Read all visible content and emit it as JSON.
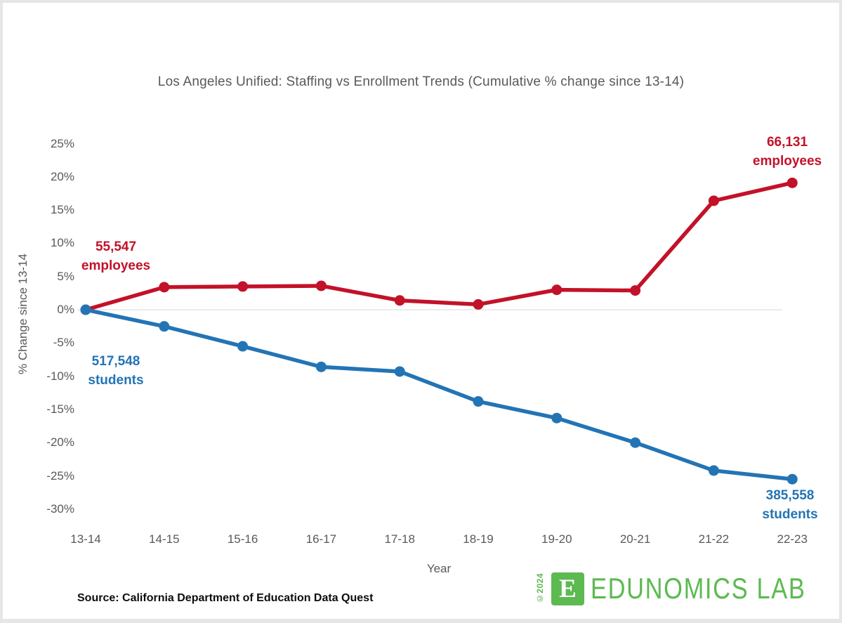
{
  "page": {
    "title": "Los Angeles Unified: Staffing vs Enrollment Trends (Cumulative % change since 13-14)",
    "source_note": "Source: California Department of Education Data Quest"
  },
  "axes": {
    "y_title": "% Change since 13-14",
    "x_title": "Year"
  },
  "annotations": {
    "employees_start": {
      "value": "55,547",
      "label": "employees"
    },
    "students_start": {
      "value": "517,548",
      "label": "students"
    },
    "employees_end": {
      "value": "66,131",
      "label": "employees"
    },
    "students_end": {
      "value": "385,558",
      "label": "students"
    }
  },
  "logo": {
    "copyright": "©2024",
    "monogram": "E",
    "name": "EDUNOMICS LAB",
    "color": "#5cba50"
  },
  "colors": {
    "employees_line": "#c21229",
    "students_line": "#2374b5",
    "axis_text": "#595959",
    "zero_gridline": "#ececec"
  },
  "chart_data": {
    "type": "line",
    "title": "Los Angeles Unified: Staffing vs Enrollment Trends (Cumulative % change since 13-14)",
    "xlabel": "Year",
    "ylabel": "% Change since 13-14",
    "categories": [
      "13-14",
      "14-15",
      "15-16",
      "16-17",
      "17-18",
      "18-19",
      "19-20",
      "20-21",
      "21-22",
      "22-23"
    ],
    "series": [
      {
        "name": "employees",
        "color": "#c21229",
        "values": [
          0,
          3.4,
          3.5,
          3.6,
          1.4,
          0.8,
          3.0,
          2.9,
          16.4,
          19.1
        ]
      },
      {
        "name": "students",
        "color": "#2374b5",
        "values": [
          0,
          -2.5,
          -5.5,
          -8.6,
          -9.3,
          -13.8,
          -16.3,
          -20.0,
          -24.2,
          -25.5
        ]
      }
    ],
    "ylim": [
      -30,
      25
    ],
    "y_ticks": [
      {
        "label": "25%",
        "value": 25
      },
      {
        "label": "20%",
        "value": 20
      },
      {
        "label": "15%",
        "value": 15
      },
      {
        "label": "10%",
        "value": 10
      },
      {
        "label": "5%",
        "value": 5
      },
      {
        "label": "0%",
        "value": 0
      },
      {
        "label": "-5%",
        "value": -5
      },
      {
        "label": "-10%",
        "value": -10
      },
      {
        "label": "-15%",
        "value": -15
      },
      {
        "label": "-20%",
        "value": -20
      },
      {
        "label": "-25%",
        "value": -25
      },
      {
        "label": "-30%",
        "value": -30
      }
    ],
    "grid": "horizontal gridline at 0% only",
    "legend": "none (series labeled directly with start/end values)"
  }
}
